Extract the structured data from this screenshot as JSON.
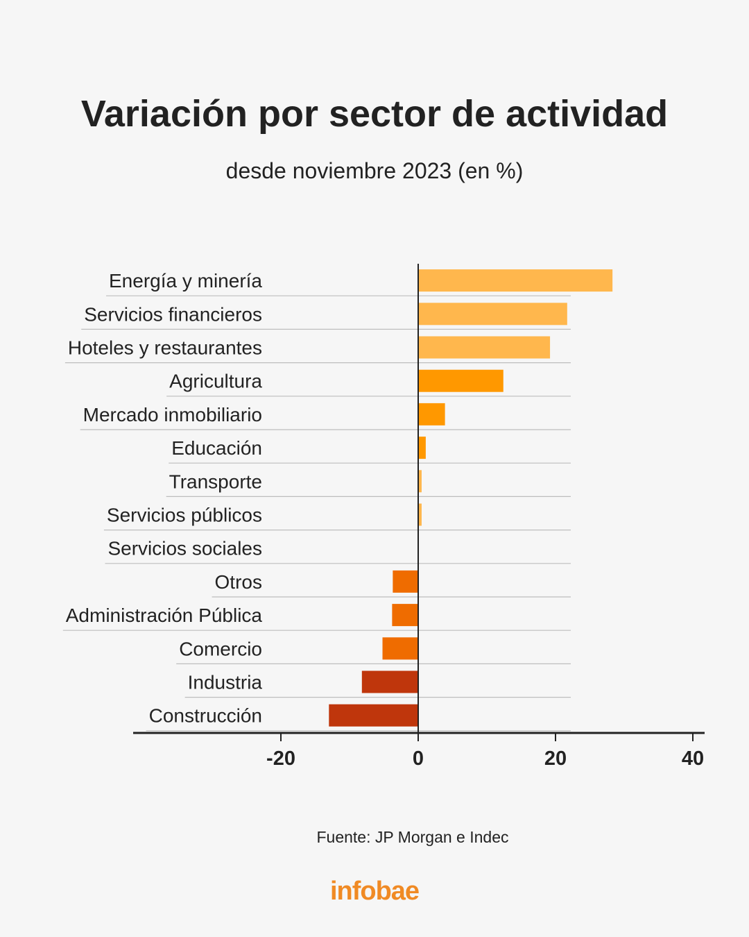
{
  "header": {
    "title": "Variación por sector de actividad",
    "subtitle": "desde noviembre 2023 (en %)"
  },
  "chart_data": {
    "type": "bar",
    "orientation": "horizontal",
    "title": "Variación por sector de actividad",
    "subtitle": "desde noviembre 2023 (en %)",
    "xlabel": "",
    "ylabel": "",
    "xlim": [
      -40,
      42
    ],
    "xticks": [
      -20,
      0,
      20,
      40
    ],
    "grid": false,
    "categories": [
      "Energía y minería",
      "Servicios financieros",
      "Hoteles y restaurantes",
      "Agricultura",
      "Mercado inmobiliario",
      "Educación",
      "Transporte",
      "Servicios públicos",
      "Servicios sociales",
      "Otros",
      "Administración Pública",
      "Comercio",
      "Industria",
      "Construcción"
    ],
    "values": [
      28.3,
      21.7,
      19.2,
      12.4,
      3.9,
      1.1,
      0.5,
      0.5,
      0,
      -3.7,
      -3.8,
      -5.2,
      -8.2,
      -13.0
    ],
    "colors": [
      "#ffb74d",
      "#ffb74d",
      "#ffb74d",
      "#ff9800",
      "#ff9800",
      "#ff9800",
      "#ffb74d",
      "#ffb74d",
      "#ffb74d",
      "#ef6c00",
      "#ef6c00",
      "#ef6c00",
      "#bf360c",
      "#bf360c"
    ]
  },
  "footer": {
    "source": "Fuente: JP Morgan e Indec",
    "logo": "infobae"
  },
  "colors": {
    "background": "#f6f6f6",
    "text": "#222222",
    "brand": "#f08a24"
  }
}
